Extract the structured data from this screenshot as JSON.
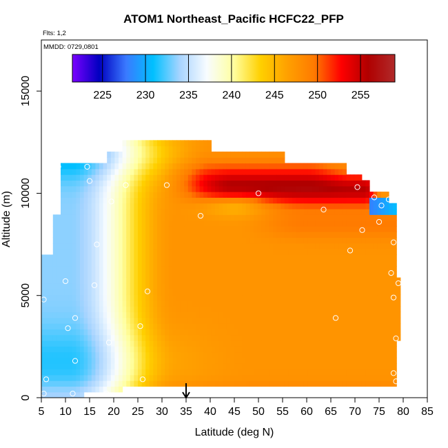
{
  "chart_data": {
    "type": "heatmap",
    "title": "ATOM1 Northeast_Pacific HCFC22_PFP",
    "annotations": {
      "flights": "Flts: 1,2",
      "dates": "MMDD: 0729,0801",
      "marker_latitude": 35
    },
    "xlabel": "Latitude (deg N)",
    "ylabel": "Altitude (m)",
    "xlim": [
      5,
      85
    ],
    "ylim": [
      0,
      17500
    ],
    "xticks": [
      5,
      10,
      15,
      20,
      25,
      30,
      35,
      40,
      45,
      50,
      55,
      60,
      65,
      70,
      75,
      80,
      85
    ],
    "yticks": [
      0,
      5000,
      10000,
      15000
    ],
    "colorbar": {
      "range": [
        221.5,
        259
      ],
      "ticks": [
        225,
        230,
        235,
        240,
        245,
        250,
        255
      ],
      "colors": [
        "#7a00ff",
        "#0000c0",
        "#3a7aff",
        "#00c0ff",
        "#a8d4ff",
        "#f8fcff",
        "#ffffa0",
        "#ffd000",
        "#ffa000",
        "#ff7a00",
        "#ff0000",
        "#b00000",
        "#b02a2a"
      ]
    },
    "grid": false,
    "samples": [
      {
        "lat": 5.5,
        "alt": 200
      },
      {
        "lat": 5.5,
        "alt": 4800
      },
      {
        "lat": 6.0,
        "alt": 900
      },
      {
        "lat": 8.5,
        "alt": 11300
      },
      {
        "lat": 10.0,
        "alt": 5700
      },
      {
        "lat": 10.5,
        "alt": 3400
      },
      {
        "lat": 11.5,
        "alt": 200
      },
      {
        "lat": 12.0,
        "alt": 1800
      },
      {
        "lat": 12.0,
        "alt": 3900
      },
      {
        "lat": 14.5,
        "alt": 11300
      },
      {
        "lat": 15.0,
        "alt": 10600
      },
      {
        "lat": 16.0,
        "alt": 5500
      },
      {
        "lat": 16.5,
        "alt": 7500
      },
      {
        "lat": 18.5,
        "alt": 200
      },
      {
        "lat": 19.0,
        "alt": 2700
      },
      {
        "lat": 19.5,
        "alt": 9600
      },
      {
        "lat": 22.5,
        "alt": 10400
      },
      {
        "lat": 25.5,
        "alt": 3500
      },
      {
        "lat": 26.0,
        "alt": 900
      },
      {
        "lat": 27.0,
        "alt": 5200
      },
      {
        "lat": 27.5,
        "alt": 12800
      },
      {
        "lat": 31.0,
        "alt": 10400
      },
      {
        "lat": 38.0,
        "alt": 8900
      },
      {
        "lat": 50.0,
        "alt": 10000
      },
      {
        "lat": 63.5,
        "alt": 9200
      },
      {
        "lat": 66.0,
        "alt": 3900
      },
      {
        "lat": 69.0,
        "alt": 7200
      },
      {
        "lat": 70.5,
        "alt": 10300
      },
      {
        "lat": 71.5,
        "alt": 8200
      },
      {
        "lat": 74.0,
        "alt": 9800
      },
      {
        "lat": 75.0,
        "alt": 8600
      },
      {
        "lat": 75.5,
        "alt": 9400
      },
      {
        "lat": 77.0,
        "alt": 9700
      },
      {
        "lat": 77.5,
        "alt": 6100
      },
      {
        "lat": 78.0,
        "alt": 7600
      },
      {
        "lat": 78.0,
        "alt": 4900
      },
      {
        "lat": 78.0,
        "alt": 1200
      },
      {
        "lat": 78.5,
        "alt": 800
      },
      {
        "lat": 78.5,
        "alt": 2900
      },
      {
        "lat": 79.0,
        "alt": 5600
      }
    ]
  }
}
